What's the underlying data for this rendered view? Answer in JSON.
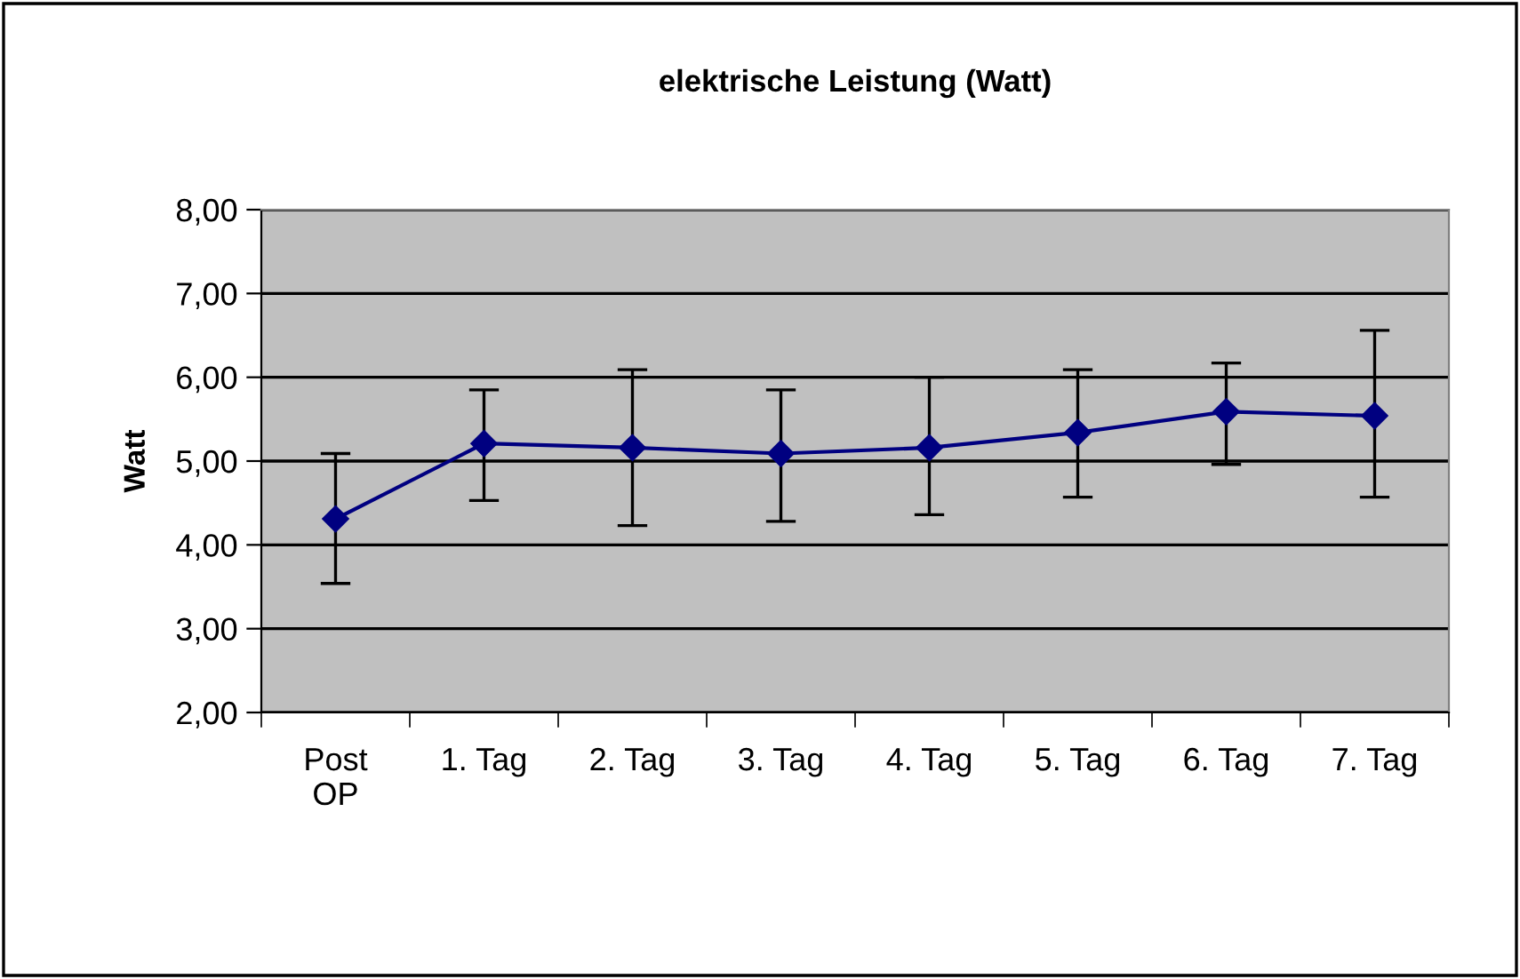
{
  "chart_data": {
    "type": "line",
    "title": "elektrische Leistung (Watt)",
    "ylabel": "Watt",
    "categories": [
      "Post\nOP",
      "1. Tag",
      "2. Tag",
      "3. Tag",
      "4. Tag",
      "5. Tag",
      "6. Tag",
      "7. Tag"
    ],
    "series": [
      {
        "color": "#000080",
        "values": [
          4.31,
          5.21,
          5.16,
          5.09,
          5.16,
          5.34,
          5.59,
          5.54
        ],
        "errors": [
          [
            3.54,
            5.09
          ],
          [
            4.53,
            5.85
          ],
          [
            4.23,
            6.09
          ],
          [
            4.28,
            5.85
          ],
          [
            4.36,
            6.0
          ],
          [
            4.57,
            6.09
          ],
          [
            4.96,
            6.17
          ],
          [
            4.57,
            6.56
          ]
        ]
      }
    ],
    "ylim": [
      2,
      8
    ],
    "yticks": [
      {
        "value": 2,
        "label": "2,00"
      },
      {
        "value": 3,
        "label": "3,00"
      },
      {
        "value": 4,
        "label": "4,00"
      },
      {
        "value": 5,
        "label": "5,00"
      },
      {
        "value": 6,
        "label": "6,00"
      },
      {
        "value": 7,
        "label": "7,00"
      },
      {
        "value": 8,
        "label": "8,00"
      }
    ],
    "grid": "y",
    "marker": "diamond",
    "line_style": "solid"
  }
}
